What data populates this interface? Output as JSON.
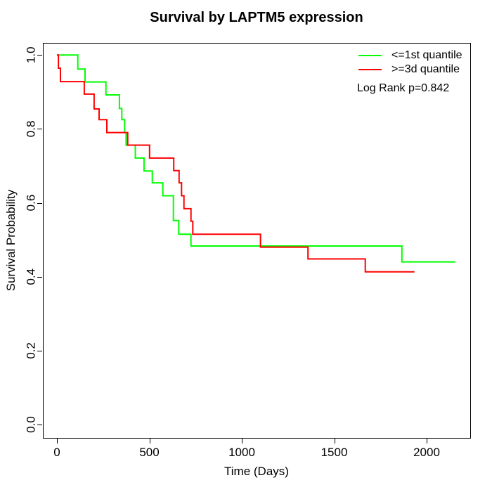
{
  "chart_data": {
    "type": "line",
    "variant": "kaplan-meier-step",
    "title": "Survival by LAPTM5 expression",
    "xlabel": "Time (Days)",
    "ylabel": "Survival Probability",
    "xlim": [
      -80,
      2240
    ],
    "ylim": [
      -0.04,
      1.04
    ],
    "grid": "off",
    "legend_position": "top-right",
    "x_ticks": [
      0,
      500,
      1000,
      1500,
      2000
    ],
    "x_tick_labels": [
      "0",
      "500",
      "1000",
      "1500",
      "2000"
    ],
    "y_ticks": [
      0.0,
      0.2,
      0.4,
      0.6,
      0.8,
      1.0
    ],
    "y_tick_labels": [
      "0.0",
      "0.2",
      "0.4",
      "0.6",
      "0.8",
      "1.0"
    ],
    "annotation": "Log Rank p=0.842",
    "log_rank_p": 0.842,
    "series": [
      {
        "name": "<=1st quantile",
        "color": "#00ff00",
        "end_time": 2156,
        "steps": [
          [
            0,
            1.0
          ],
          [
            113,
            0.962
          ],
          [
            152,
            0.927
          ],
          [
            265,
            0.892
          ],
          [
            338,
            0.855
          ],
          [
            351,
            0.825
          ],
          [
            366,
            0.79
          ],
          [
            374,
            0.756
          ],
          [
            424,
            0.721
          ],
          [
            471,
            0.686
          ],
          [
            516,
            0.654
          ],
          [
            573,
            0.619
          ],
          [
            630,
            0.552
          ],
          [
            659,
            0.515
          ],
          [
            725,
            0.483
          ],
          [
            1866,
            0.44
          ]
        ]
      },
      {
        "name": ">=3d quantile",
        "color": "#ff0000",
        "end_time": 1934,
        "steps": [
          [
            0,
            1.0
          ],
          [
            8,
            0.964
          ],
          [
            19,
            0.928
          ],
          [
            148,
            0.894
          ],
          [
            201,
            0.854
          ],
          [
            228,
            0.825
          ],
          [
            270,
            0.79
          ],
          [
            383,
            0.756
          ],
          [
            501,
            0.721
          ],
          [
            632,
            0.687
          ],
          [
            661,
            0.654
          ],
          [
            674,
            0.619
          ],
          [
            687,
            0.584
          ],
          [
            725,
            0.55
          ],
          [
            735,
            0.515
          ],
          [
            1101,
            0.48
          ],
          [
            1358,
            0.448
          ],
          [
            1668,
            0.413
          ]
        ]
      }
    ]
  },
  "legend": {
    "note": "Log Rank p=0.842"
  }
}
